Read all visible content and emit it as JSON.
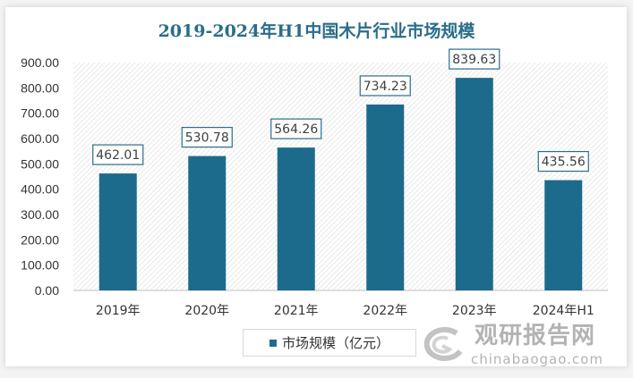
{
  "chart_data": {
    "type": "bar",
    "title": "2019-2024年H1中国木片行业市场规模",
    "categories": [
      "2019年",
      "2020年",
      "2021年",
      "2022年",
      "2023年",
      "2024年H1"
    ],
    "series": [
      {
        "name": "市场规模（亿元）",
        "values": [
          462.01,
          530.78,
          564.26,
          734.23,
          839.63,
          435.56
        ]
      }
    ],
    "data_labels": [
      "462.01",
      "530.78",
      "564.26",
      "734.23",
      "839.63",
      "435.56"
    ],
    "yticks": [
      "0.00",
      "100.00",
      "200.00",
      "300.00",
      "400.00",
      "500.00",
      "600.00",
      "700.00",
      "800.00",
      "900.00"
    ],
    "ylim": [
      0,
      900
    ],
    "grid": false,
    "background": "diagonal-hatch",
    "legend_position": "bottom",
    "bar_color": "#1d6b8c",
    "title_color": "#2a6d8a"
  },
  "watermark": {
    "cn": "观研报告网",
    "en": "chinabaogao.com"
  }
}
